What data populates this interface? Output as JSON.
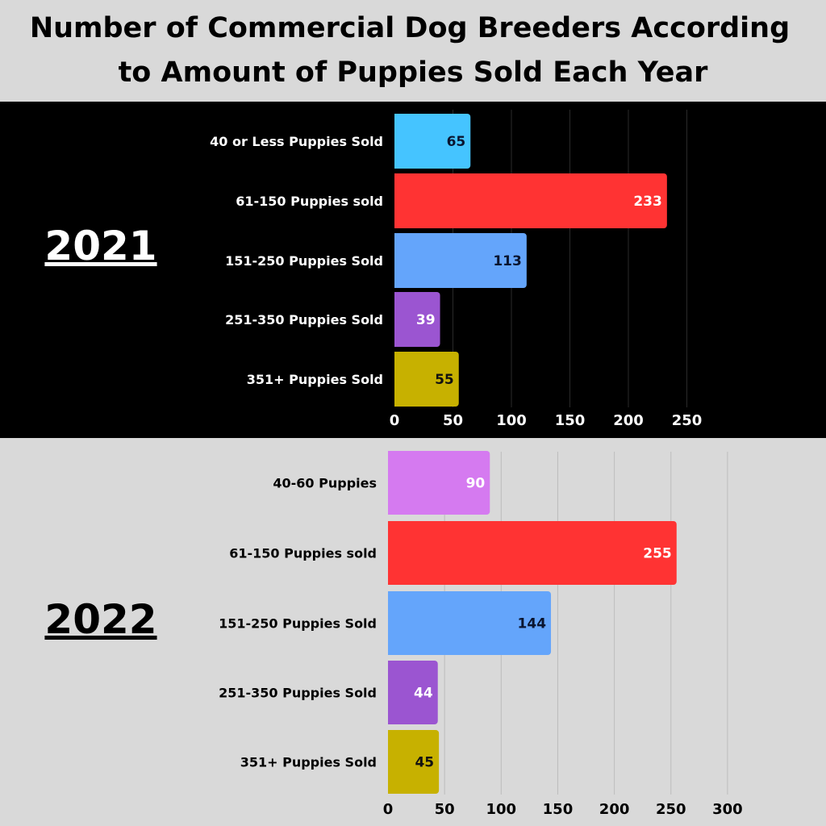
{
  "chart_data": {
    "title": "Number of Commercial Dog Breeders According to Amount of Puppies Sold Each Year",
    "title_lines": [
      "Number of Commercial Dog Breeders According",
      "to Amount of Puppies Sold Each Year"
    ],
    "charts": [
      {
        "type": "bar",
        "orientation": "horizontal",
        "year_label": "2021",
        "categories": [
          "40 or Less Puppies Sold",
          "61-150 Puppies sold",
          "151-250 Puppies Sold",
          "251-350 Puppies Sold",
          "351+ Puppies Sold"
        ],
        "values": [
          65,
          233,
          113,
          39,
          55
        ],
        "colors": [
          "#45c4ff",
          "#ff3333",
          "#64a5fb",
          "#9b55d1",
          "#c7b100"
        ],
        "label_colors": [
          "#0a1530",
          "#ffffff",
          "#0a1530",
          "#ffffff",
          "#111111"
        ],
        "xticks": [
          0,
          50,
          100,
          150,
          200,
          250
        ],
        "xlim": [
          0,
          250
        ],
        "grid": true,
        "background": "#000000",
        "text_color": "#ffffff"
      },
      {
        "type": "bar",
        "orientation": "horizontal",
        "year_label": "2022",
        "categories": [
          "40-60 Puppies",
          "61-150 Puppies sold",
          "151-250 Puppies Sold",
          "251-350 Puppies Sold",
          "351+ Puppies Sold"
        ],
        "values": [
          90,
          255,
          144,
          44,
          45
        ],
        "colors": [
          "#d57af0",
          "#ff3333",
          "#64a5fb",
          "#9b55d1",
          "#c7b100"
        ],
        "label_colors": [
          "#ffffff",
          "#ffffff",
          "#0a1530",
          "#ffffff",
          "#111111"
        ],
        "xticks": [
          0,
          50,
          100,
          150,
          200,
          250,
          300
        ],
        "xlim": [
          0,
          300
        ],
        "grid": true,
        "background": "#d9d9d9",
        "text_color": "#000000"
      }
    ]
  }
}
